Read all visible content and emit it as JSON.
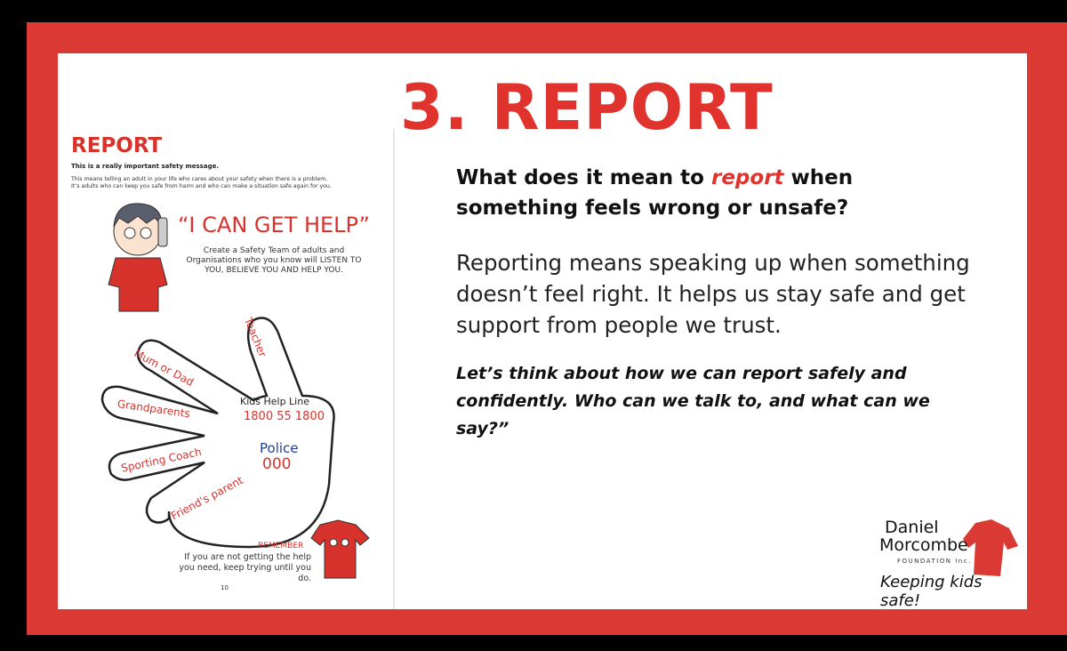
{
  "slide": {
    "title": "3. REPORT",
    "question_part1": "What does it mean to ",
    "question_emphasis": "report",
    "question_part2": " when something feels wrong or unsafe?",
    "paragraph": "Reporting means speaking up when something doesn’t feel right. It helps us stay safe and get support from people we trust.",
    "prompt": "Let’s think about how we can report safely and confidently. Who can we talk to, and what can we say?”"
  },
  "worksheet": {
    "heading": "REPORT",
    "important": "This is a really important safety message.",
    "line1": "This means telling an adult in your life who cares about your safety when there is a problem.",
    "line2": "It’s adults who can keep you safe from harm and who can make a situation safe again for you.",
    "slogan": "“I CAN GET HELP”",
    "instructions": "Create a Safety Team of adults and Organisations who you know will LISTEN TO YOU, BELIEVE YOU AND HELP YOU.",
    "fingers": [
      "Teacher",
      "Mum or Dad",
      "Grandparents",
      "Sporting Coach",
      "Friend's parent"
    ],
    "helpline_label": "Kids Help Line",
    "helpline_number": "1800 55 1800",
    "police_label": "Police",
    "police_number": "000",
    "remember_label": "REMEMBER",
    "remember_text": "If you are not getting the help you need, keep trying until you do.",
    "page_number": "10"
  },
  "logo": {
    "line1": "Daniel",
    "line2": "Morcombe",
    "line3": "FOUNDATION Inc.",
    "tagline": "Keeping kids safe!"
  },
  "colors": {
    "brand_red": "#db3a34",
    "police_blue": "#1f3c99"
  }
}
